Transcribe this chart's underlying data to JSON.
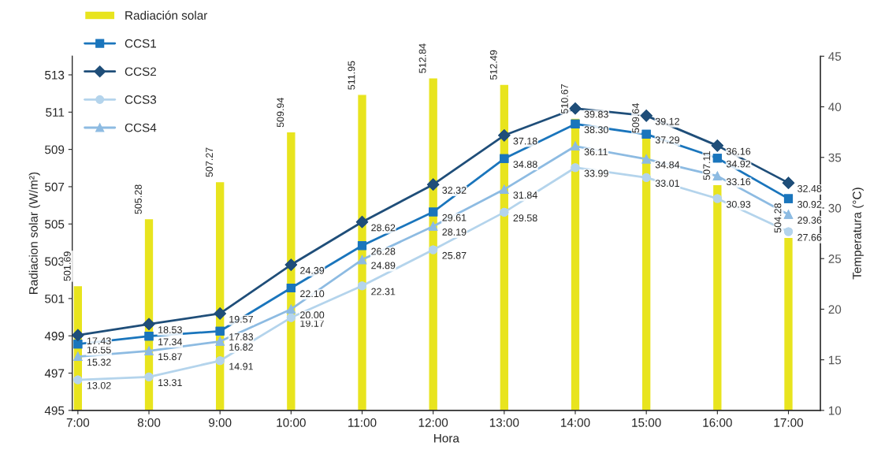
{
  "chart_data": {
    "type": "bar",
    "xlabel": "Hora",
    "ylabel": "Radiacion solar (W/m²)",
    "y2label": "Temperatura (°C)",
    "categories": [
      "7:00",
      "8:00",
      "9:00",
      "10:00",
      "11:00",
      "12:00",
      "13:00",
      "14:00",
      "15:00",
      "16:00",
      "17:00"
    ],
    "series": [
      {
        "name": "Radiación solar",
        "color": "#e8e41e",
        "values": [
          501.69,
          505.28,
          507.27,
          509.94,
          511.95,
          512.84,
          512.49,
          510.67,
          509.64,
          507.11,
          504.28
        ],
        "value_labels": [
          "501.69",
          "505.28",
          "507.27",
          "509.94",
          "511.95",
          "512.84",
          "512.49",
          "510.67",
          "509.64",
          "507.11",
          "504.28"
        ]
      },
      {
        "name": "CCS1",
        "type": "line",
        "axis": "y2",
        "marker": "square",
        "color": "#1a75bc",
        "values": [
          16.55,
          17.34,
          17.83,
          22.1,
          26.28,
          29.61,
          34.88,
          38.3,
          37.29,
          34.92,
          30.92
        ],
        "value_labels": [
          "16.55",
          "17.34",
          "17.83",
          "22.10",
          "26.28",
          "29.61",
          "34.88",
          "38.30",
          "37.29",
          "34.92",
          "30.92"
        ]
      },
      {
        "name": "CCS2",
        "type": "line",
        "axis": "y2",
        "marker": "diamond",
        "color": "#1f4e79",
        "values": [
          17.43,
          18.53,
          19.57,
          24.39,
          28.62,
          32.32,
          37.18,
          39.83,
          39.12,
          36.16,
          32.48
        ],
        "value_labels": [
          "17.43",
          "18.53",
          "19.57",
          "24.39",
          "28.62",
          "32.32",
          "37.18",
          "39.83",
          "39.12",
          "36.16",
          "32.48"
        ]
      },
      {
        "name": "CCS3",
        "type": "line",
        "axis": "y2",
        "marker": "circle",
        "color": "#b4d4ec",
        "values": [
          13.02,
          13.31,
          14.91,
          19.17,
          22.31,
          25.87,
          29.58,
          33.99,
          33.01,
          30.93,
          27.66
        ],
        "value_labels": [
          "13.02",
          "13.31",
          "14.91",
          "19.17",
          "22.31",
          "25.87",
          "29.58",
          "33.99",
          "33.01",
          "30.93",
          "27.66"
        ]
      },
      {
        "name": "CCS4",
        "type": "line",
        "axis": "y2",
        "marker": "triangle",
        "color": "#8dbbe2",
        "values": [
          15.32,
          15.87,
          16.82,
          20.0,
          24.89,
          28.19,
          31.84,
          36.11,
          34.84,
          33.16,
          29.36
        ],
        "value_labels": [
          "15.32",
          "15.87",
          "16.82",
          "20.00",
          "24.89",
          "28.19",
          "31.84",
          "36.11",
          "34.84",
          "33.16",
          "29.36"
        ]
      }
    ],
    "ylim": [
      495,
      514
    ],
    "yticks": [
      495,
      497,
      499,
      501,
      503,
      505,
      507,
      509,
      511,
      513
    ],
    "y2lim": [
      10,
      45
    ],
    "y2ticks": [
      10,
      15,
      20,
      25,
      30,
      35,
      40,
      45
    ],
    "legend": "top left",
    "grid": false
  }
}
